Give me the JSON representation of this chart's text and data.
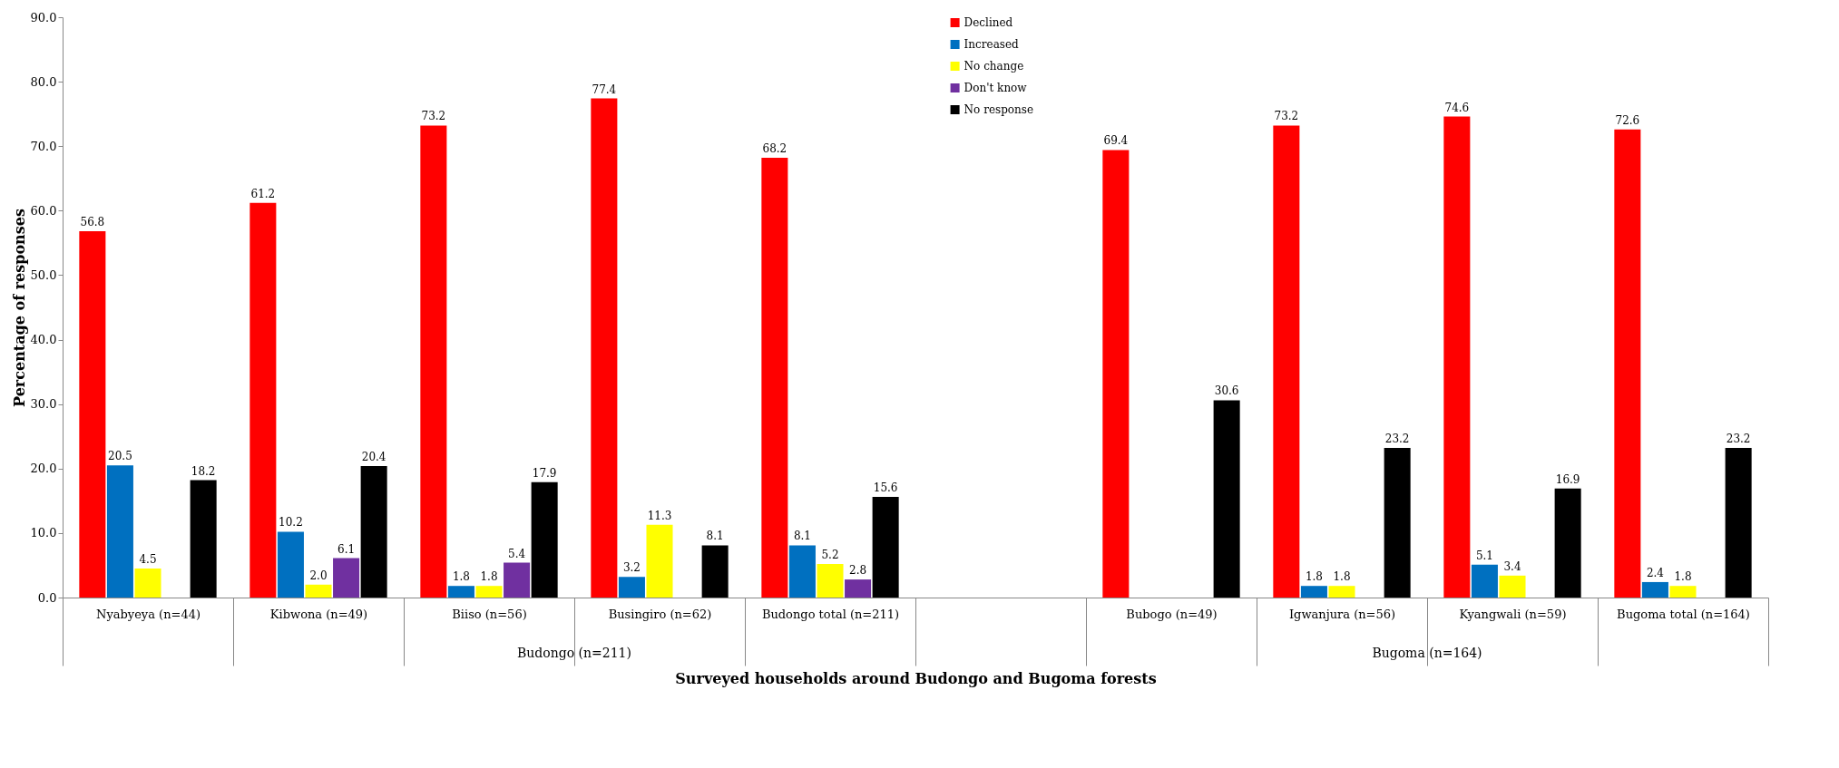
{
  "chart_data": {
    "type": "bar",
    "ylabel": "Percentage of responses",
    "xlabel": "Surveyed households around Budongo and Bugoma forests",
    "categories": [
      "Nyabyeya (n=44)",
      "Kibwona (n=49)",
      "Biiso (n=56)",
      "Busingiro (n=62)",
      "Budongo total (n=211)",
      null,
      "Bubogo (n=49)",
      "Igwanjura (n=56)",
      "Kyangwali (n=59)",
      "Bugoma total (n=164)"
    ],
    "series": [
      {
        "name": "Declined",
        "color": "#ff0000",
        "values": [
          56.8,
          61.2,
          73.2,
          77.4,
          68.2,
          null,
          69.4,
          73.2,
          74.6,
          72.6
        ],
        "value_labels": [
          "56.8",
          "61.2",
          "73.2",
          "77.4",
          "68.2",
          null,
          "69.4",
          "73.2",
          "74.6",
          "72.6"
        ]
      },
      {
        "name": "Increased",
        "color": "#0070c0",
        "values": [
          20.5,
          10.2,
          1.8,
          3.2,
          8.1,
          null,
          null,
          1.8,
          5.1,
          2.4
        ],
        "value_labels": [
          "20.5",
          "10.2",
          "1.8",
          "3.2",
          "8.1",
          null,
          null,
          "1.8",
          "5.1",
          "2.4"
        ]
      },
      {
        "name": "No change",
        "color": "#ffff00",
        "values": [
          4.5,
          2.0,
          1.8,
          11.3,
          5.2,
          null,
          null,
          1.8,
          3.4,
          1.8
        ],
        "value_labels": [
          "4.5",
          "2.0",
          "1.8",
          "11.3",
          "5.2",
          null,
          null,
          "1.8",
          "3.4",
          "1.8"
        ]
      },
      {
        "name": "Don't know",
        "color": "#7030a0",
        "values": [
          null,
          6.1,
          5.4,
          null,
          2.8,
          null,
          null,
          null,
          null,
          null
        ],
        "value_labels": [
          null,
          "6.1",
          "5.4",
          null,
          "2.8",
          null,
          null,
          null,
          null,
          null
        ]
      },
      {
        "name": "No response",
        "color": "#000000",
        "values": [
          18.2,
          20.4,
          17.9,
          8.1,
          15.6,
          null,
          30.6,
          23.2,
          16.9,
          23.2
        ],
        "value_labels": [
          "18.2",
          "20.4",
          "17.9",
          "8.1",
          "15.6",
          null,
          "30.6",
          "23.2",
          "16.9",
          "23.2"
        ]
      }
    ],
    "ylim": [
      0,
      90
    ],
    "yticks": [
      {
        "value": 0,
        "label": "0.0"
      },
      {
        "value": 10,
        "label": "10.0"
      },
      {
        "value": 20,
        "label": "20.0"
      },
      {
        "value": 30,
        "label": "30.0"
      },
      {
        "value": 40,
        "label": "40.0"
      },
      {
        "value": 50,
        "label": "50.0"
      },
      {
        "value": 60,
        "label": "60.0"
      },
      {
        "value": 70,
        "label": "70.0"
      },
      {
        "value": 80,
        "label": "80.0"
      },
      {
        "value": 90,
        "label": "90.0"
      }
    ],
    "grid": false,
    "legend": "top",
    "annotations": [
      "Budongo (n=211)",
      "Bugoma (n=164)"
    ]
  }
}
